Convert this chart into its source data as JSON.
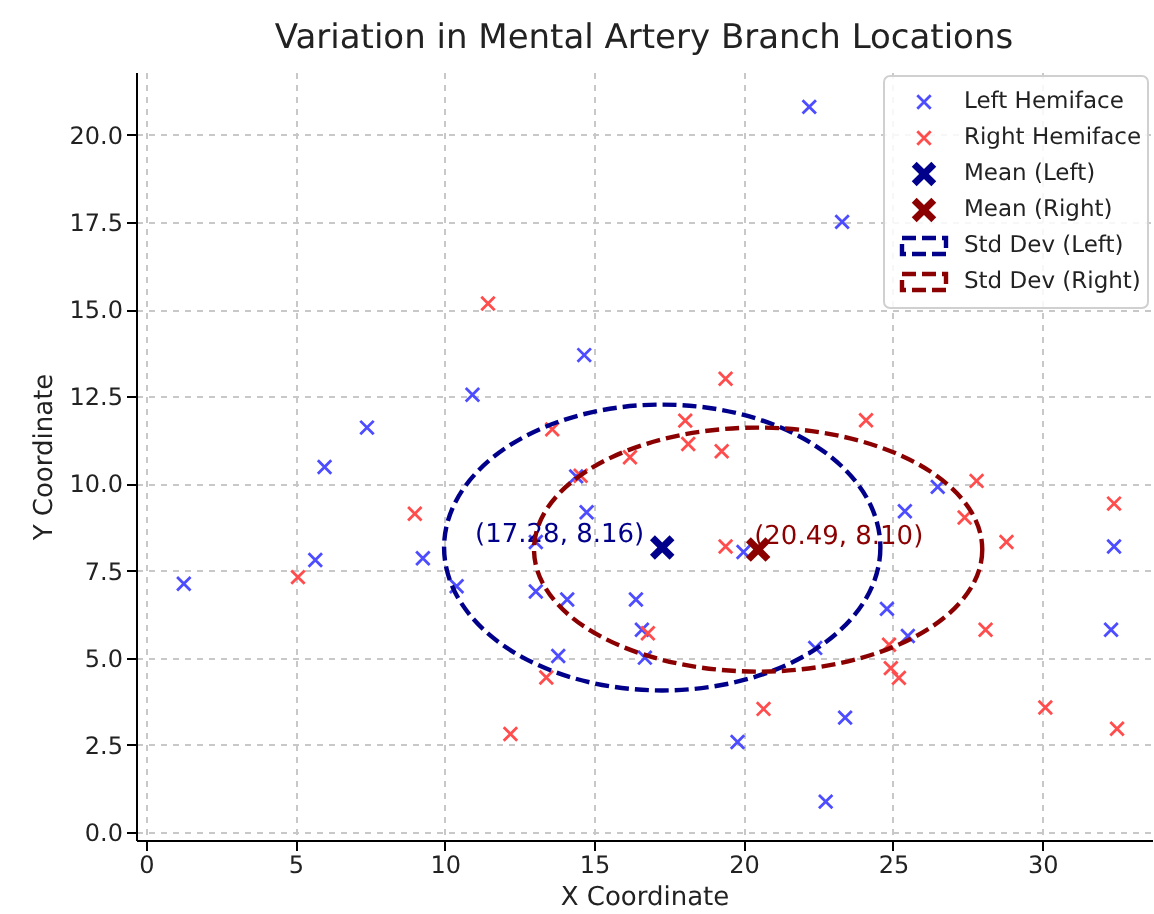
{
  "chart_data": {
    "type": "scatter",
    "title": "Variation in Mental Artery Branch Locations",
    "xlabel": "X Coordinate",
    "ylabel": "Y Coordinate",
    "xlim": [
      -0.33,
      33.67
    ],
    "ylim": [
      -0.23,
      21.8
    ],
    "xticks": [
      0,
      5,
      10,
      15,
      20,
      25,
      30
    ],
    "yticks": [
      {
        "value": 0,
        "label": "0.0"
      },
      {
        "value": 2.5,
        "label": "2.5"
      },
      {
        "value": 5,
        "label": "5.0"
      },
      {
        "value": 7.5,
        "label": "7.5"
      },
      {
        "value": 10,
        "label": "10.0"
      },
      {
        "value": 12.5,
        "label": "12.5"
      },
      {
        "value": 15,
        "label": "15.0"
      },
      {
        "value": 17.5,
        "label": "17.5"
      },
      {
        "value": 20,
        "label": "20.0"
      }
    ],
    "grid": true,
    "legend": "top right",
    "marker": "cross",
    "series": [
      {
        "name": "Left Hemiface",
        "color": "#4d4dff",
        "x": [
          1.27,
          5.67,
          5.98,
          7.4,
          9.27,
          10.4,
          10.93,
          13.05,
          13.05,
          13.8,
          14.1,
          14.4,
          14.75,
          14.67,
          16.4,
          16.6,
          16.7,
          20.0,
          22.4,
          23.4,
          22.75,
          19.8,
          24.8,
          25.5,
          25.4,
          26.5,
          32.4,
          32.3,
          22.2,
          23.3
        ],
        "values": [
          7.12,
          7.8,
          10.47,
          11.6,
          7.85,
          7.05,
          12.54,
          6.9,
          8.32,
          5.05,
          6.67,
          10.2,
          9.17,
          13.68,
          6.67,
          5.8,
          5.0,
          8.03,
          5.28,
          3.28,
          0.87,
          2.58,
          6.4,
          5.62,
          9.2,
          9.9,
          8.19,
          5.8,
          20.8,
          17.5
        ]
      },
      {
        "name": "Right Hemiface",
        "color": "#ff4d4d",
        "x": [
          5.09,
          9.0,
          12.2,
          13.4,
          14.55,
          13.6,
          16.2,
          11.45,
          18.15,
          19.27,
          19.4,
          16.8,
          20.67,
          24.87,
          24.93,
          25.2,
          27.8,
          27.4,
          28.8,
          28.1,
          30.1,
          32.4,
          32.5,
          19.4,
          18.05,
          24.1
        ],
        "values": [
          7.31,
          9.13,
          2.81,
          4.43,
          10.22,
          11.55,
          10.75,
          15.16,
          11.13,
          10.92,
          8.19,
          5.7,
          3.53,
          5.37,
          4.7,
          4.42,
          10.07,
          9.02,
          8.32,
          5.8,
          3.57,
          9.42,
          2.96,
          13.0,
          11.8,
          11.81
        ]
      },
      {
        "name": "Mean (Left)",
        "color": "#00008b",
        "x": [
          17.28
        ],
        "values": [
          8.16
        ],
        "value_labels": [
          "(17.28, 8.16)"
        ]
      },
      {
        "name": "Mean (Right)",
        "color": "#8b0000",
        "x": [
          20.49
        ],
        "values": [
          8.1
        ],
        "value_labels": [
          "(20.49, 8.10)"
        ]
      }
    ],
    "annotations": [
      "Std Dev (Left)",
      "Std Dev (Right)"
    ]
  }
}
